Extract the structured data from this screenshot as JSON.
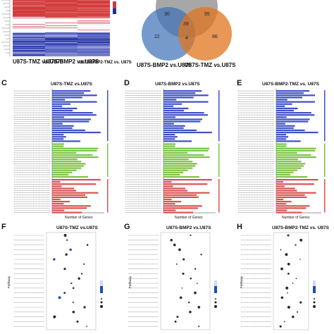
{
  "heatmap": {
    "column_labels": [
      "U87S-TMZ vs.U87S",
      "U87S-BMP2 vs.U87S",
      "U87S-BMP2-TMZ vs. U87S"
    ],
    "colors": {
      "high": "#d23a3a",
      "low": "#1f2fa8",
      "mid": "#f4f4ff"
    }
  },
  "venn": {
    "sets": [
      {
        "name": "U87S-BMP2 vs.U87S",
        "color": "#3a6fb5"
      },
      {
        "name": "U87S-TMZ vs.U87S",
        "color": "#e0741d"
      },
      {
        "name": "",
        "color": "#7a7a7a"
      }
    ],
    "region_counts": [
      "30",
      "55",
      "39",
      "22",
      "4",
      "86"
    ]
  },
  "go_panels": [
    {
      "label": "C",
      "title": "U87S-TMZ vs.U87S",
      "xlabel": "Number of Genes"
    },
    {
      "label": "D",
      "title": "U87S-BMP2 vs.U87S",
      "xlabel": "Number of Genes"
    },
    {
      "label": "E",
      "title": "U87S-BMP2-TMZ vs. U87S",
      "xlabel": "Number of Genes"
    }
  ],
  "go_colors": {
    "bp": "#3f4fc6",
    "cc": "#7cc243",
    "mf": "#d9534f"
  },
  "kegg_panels": [
    {
      "label": "F",
      "title": "U87S-TMZ vs.U87S",
      "ylabel": "Pathway"
    },
    {
      "label": "G",
      "title": "U87S-BMP2 vs.U87S",
      "ylabel": "Pathway"
    },
    {
      "label": "H",
      "title": "U87S-BMP2-TMZ vs. U87S",
      "ylabel": "Pathway"
    }
  ]
}
